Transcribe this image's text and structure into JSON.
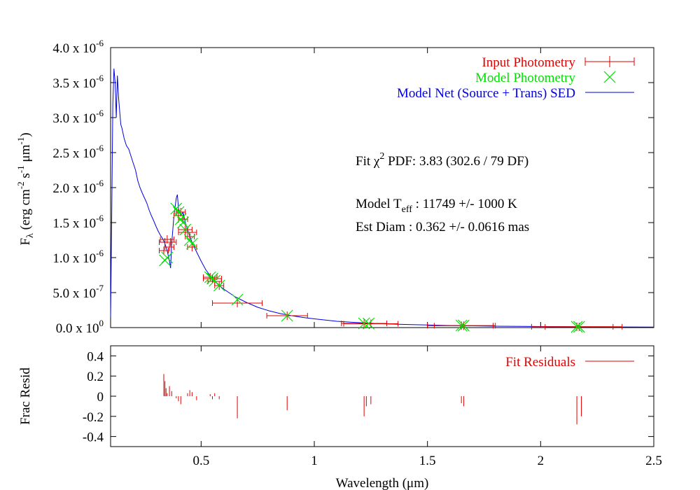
{
  "colors": {
    "input": "#e00000",
    "model_phot": "#00e000",
    "sed": "#0000e0",
    "axes": "#000000"
  },
  "chart_data": [
    {
      "id": "sed_panel",
      "type": "line",
      "xlim": [
        0.1,
        2.5
      ],
      "ylim": [
        0,
        4e-06
      ],
      "ylabel": "F_λ (erg cm^-2 s^-1 μm^-1)",
      "ylabel_parts": {
        "f": "F",
        "lambda": "λ",
        "open": "(erg cm",
        "e1": "-2",
        "s": " s",
        "e2": "-1",
        "um": " μm",
        "e3": "-1",
        "close": ")"
      },
      "yticks": [
        {
          "v": 0.0,
          "mant": "0.0 x 10",
          "exp": "0"
        },
        {
          "v": 5e-07,
          "mant": "5.0 x 10",
          "exp": "-7"
        },
        {
          "v": 1e-06,
          "mant": "1.0 x 10",
          "exp": "-6"
        },
        {
          "v": 1.5e-06,
          "mant": "1.5 x 10",
          "exp": "-6"
        },
        {
          "v": 2e-06,
          "mant": "2.0 x 10",
          "exp": "-6"
        },
        {
          "v": 2.5e-06,
          "mant": "2.5 x 10",
          "exp": "-6"
        },
        {
          "v": 3e-06,
          "mant": "3.0 x 10",
          "exp": "-6"
        },
        {
          "v": 3.5e-06,
          "mant": "3.5 x 10",
          "exp": "-6"
        },
        {
          "v": 4e-06,
          "mant": "4.0 x 10",
          "exp": "-6"
        }
      ],
      "xticks_values": [
        0.5,
        1.0,
        1.5,
        2.0,
        2.5
      ],
      "legend": {
        "placement": "top-right",
        "entries": [
          {
            "key": "input",
            "label": "Input Photometry",
            "style": "errorbar"
          },
          {
            "key": "model_phot",
            "label": "Model Photometry",
            "style": "cross"
          },
          {
            "key": "sed",
            "label": "Model Net (Source + Trans) SED",
            "style": "line"
          }
        ]
      },
      "annotations": {
        "chi_fit": "Fit ",
        "chi_sym": "χ",
        "chi_exp": "2",
        "chi_rest": " PDF: 3.83 (302.6 / 79 DF)",
        "teff_pre": "Model T",
        "teff_sub": "eff",
        "teff_rest": " : 11749 +/- 1000 K",
        "diam": "Est Diam : 0.362 +/- 0.0616 mas"
      },
      "sed_curve": [
        [
          0.1,
          1.5e-07
        ],
        [
          0.105,
          1.6e-06
        ],
        [
          0.11,
          3.2e-06
        ],
        [
          0.115,
          3.7e-06
        ],
        [
          0.12,
          3.5e-06
        ],
        [
          0.125,
          3e-06
        ],
        [
          0.13,
          3.6e-06
        ],
        [
          0.135,
          3.3e-06
        ],
        [
          0.14,
          3.1e-06
        ],
        [
          0.145,
          2.9e-06
        ],
        [
          0.15,
          2.85e-06
        ],
        [
          0.16,
          2.7e-06
        ],
        [
          0.17,
          2.6e-06
        ],
        [
          0.18,
          2.55e-06
        ],
        [
          0.19,
          2.45e-06
        ],
        [
          0.2,
          2.35e-06
        ],
        [
          0.21,
          2.25e-06
        ],
        [
          0.22,
          2.1e-06
        ],
        [
          0.23,
          2e-06
        ],
        [
          0.24,
          1.92e-06
        ],
        [
          0.25,
          1.85e-06
        ],
        [
          0.26,
          1.78e-06
        ],
        [
          0.27,
          1.68e-06
        ],
        [
          0.28,
          1.6e-06
        ],
        [
          0.29,
          1.53e-06
        ],
        [
          0.3,
          1.45e-06
        ],
        [
          0.31,
          1.38e-06
        ],
        [
          0.32,
          1.32e-06
        ],
        [
          0.33,
          1.27e-06
        ],
        [
          0.34,
          1.2e-06
        ],
        [
          0.35,
          1.1e-06
        ],
        [
          0.36,
          9.5e-07
        ],
        [
          0.365,
          8.5e-07
        ],
        [
          0.37,
          1.2e-06
        ],
        [
          0.38,
          1.6e-06
        ],
        [
          0.39,
          1.85e-06
        ],
        [
          0.395,
          1.9e-06
        ],
        [
          0.4,
          1.7e-06
        ],
        [
          0.41,
          1.6e-06
        ],
        [
          0.42,
          1.65e-06
        ],
        [
          0.43,
          1.5e-06
        ],
        [
          0.44,
          1.4e-06
        ],
        [
          0.45,
          1.3e-06
        ],
        [
          0.46,
          1.22e-06
        ],
        [
          0.47,
          1.15e-06
        ],
        [
          0.48,
          1.08e-06
        ],
        [
          0.5,
          9.5e-07
        ],
        [
          0.52,
          8.3e-07
        ],
        [
          0.54,
          7.4e-07
        ],
        [
          0.56,
          6.6e-07
        ],
        [
          0.58,
          6e-07
        ],
        [
          0.6,
          5.5e-07
        ],
        [
          0.65,
          4.4e-07
        ],
        [
          0.7,
          3.6e-07
        ],
        [
          0.75,
          2.9e-07
        ],
        [
          0.8,
          2.4e-07
        ],
        [
          0.85,
          2e-07
        ],
        [
          0.9,
          1.7e-07
        ],
        [
          0.95,
          1.45e-07
        ],
        [
          1.0,
          1.25e-07
        ],
        [
          1.1,
          9e-08
        ],
        [
          1.2,
          7e-08
        ],
        [
          1.3,
          5.5e-08
        ],
        [
          1.4,
          4.5e-08
        ],
        [
          1.5,
          3.7e-08
        ],
        [
          1.6,
          3e-08
        ],
        [
          1.8,
          2e-08
        ],
        [
          2.0,
          1.5e-08
        ],
        [
          2.2,
          1.1e-08
        ],
        [
          2.5,
          7e-09
        ]
      ],
      "input_photometry": [
        {
          "x": 0.335,
          "y": 1.1e-06,
          "xerr": 0.02,
          "yerr": 5e-08
        },
        {
          "x": 0.34,
          "y": 1.22e-06,
          "xerr": 0.025,
          "yerr": 5e-08
        },
        {
          "x": 0.35,
          "y": 1.26e-06,
          "xerr": 0.03,
          "yerr": 5e-08
        },
        {
          "x": 0.36,
          "y": 1.15e-06,
          "xerr": 0.02,
          "yerr": 5e-08
        },
        {
          "x": 0.365,
          "y": 1.22e-06,
          "xerr": 0.025,
          "yerr": 5e-08
        },
        {
          "x": 0.4,
          "y": 1.6e-06,
          "xerr": 0.02,
          "yerr": 1e-07
        },
        {
          "x": 0.41,
          "y": 1.65e-06,
          "xerr": 0.02,
          "yerr": 5e-08
        },
        {
          "x": 0.42,
          "y": 1.55e-06,
          "xerr": 0.02,
          "yerr": 5e-08
        },
        {
          "x": 0.43,
          "y": 1.4e-06,
          "xerr": 0.03,
          "yerr": 5e-08
        },
        {
          "x": 0.44,
          "y": 1.36e-06,
          "xerr": 0.04,
          "yerr": 5e-08
        },
        {
          "x": 0.45,
          "y": 1.3e-06,
          "xerr": 0.02,
          "yerr": 5e-08
        },
        {
          "x": 0.46,
          "y": 1.15e-06,
          "xerr": 0.02,
          "yerr": 5e-08
        },
        {
          "x": 0.54,
          "y": 7.2e-07,
          "xerr": 0.03,
          "yerr": 4e-08
        },
        {
          "x": 0.55,
          "y": 7e-07,
          "xerr": 0.04,
          "yerr": 4e-08
        },
        {
          "x": 0.56,
          "y": 6.6e-07,
          "xerr": 0.03,
          "yerr": 4e-08
        },
        {
          "x": 0.58,
          "y": 6e-07,
          "xerr": 0.02,
          "yerr": 3e-08
        },
        {
          "x": 0.66,
          "y": 3.5e-07,
          "xerr": 0.11,
          "yerr": 3e-08
        },
        {
          "x": 0.88,
          "y": 1.7e-07,
          "xerr": 0.09,
          "yerr": 2e-08
        },
        {
          "x": 1.22,
          "y": 6e-08,
          "xerr": 0.1,
          "yerr": 1e-08
        },
        {
          "x": 1.25,
          "y": 5.5e-08,
          "xerr": 0.12,
          "yerr": 1e-08
        },
        {
          "x": 1.65,
          "y": 2.8e-08,
          "xerr": 0.15,
          "yerr": 5e-09
        },
        {
          "x": 1.66,
          "y": 2.7e-08,
          "xerr": 0.13,
          "yerr": 5e-09
        },
        {
          "x": 2.16,
          "y": 1.2e-08,
          "xerr": 0.2,
          "yerr": 3e-09
        },
        {
          "x": 2.17,
          "y": 1.1e-08,
          "xerr": 0.15,
          "yerr": 3e-09
        }
      ],
      "model_photometry": [
        [
          0.34,
          9.6e-07
        ],
        [
          0.35,
          1e-06
        ],
        [
          0.39,
          1.7e-06
        ],
        [
          0.4,
          1.65e-06
        ],
        [
          0.41,
          1.55e-06
        ],
        [
          0.42,
          1.5e-06
        ],
        [
          0.43,
          1.4e-06
        ],
        [
          0.45,
          1.25e-06
        ],
        [
          0.46,
          1.2e-06
        ],
        [
          0.54,
          7.2e-07
        ],
        [
          0.55,
          7e-07
        ],
        [
          0.56,
          6.7e-07
        ],
        [
          0.58,
          6e-07
        ],
        [
          0.66,
          4e-07
        ],
        [
          0.88,
          1.7e-07
        ],
        [
          1.22,
          6e-08
        ],
        [
          1.24,
          5.8e-08
        ],
        [
          1.65,
          3e-08
        ],
        [
          1.66,
          2.9e-08
        ],
        [
          2.16,
          1.2e-08
        ],
        [
          2.17,
          1.2e-08
        ]
      ]
    },
    {
      "id": "residual_panel",
      "type": "bar",
      "xlim": [
        0.1,
        2.5
      ],
      "ylim": [
        -0.5,
        0.5
      ],
      "ylabel": "Frac Resid",
      "xlabel": "Wavelength (μm)",
      "xlabel_parts": {
        "pre": "Wavelength (",
        "um": "μm",
        "post": ")"
      },
      "yticks": [
        "0.4",
        "0.2",
        "0",
        "-0.2",
        "-0.4"
      ],
      "xticks": [
        "0.5",
        "1",
        "1.5",
        "2",
        "2.5"
      ],
      "legend": {
        "placement": "top-right",
        "label": "Fit Residuals"
      },
      "residuals": [
        [
          0.335,
          0.22
        ],
        [
          0.34,
          0.15
        ],
        [
          0.345,
          0.08
        ],
        [
          0.35,
          0.03
        ],
        [
          0.36,
          0.1
        ],
        [
          0.37,
          0.05
        ],
        [
          0.39,
          -0.02
        ],
        [
          0.4,
          -0.05
        ],
        [
          0.41,
          -0.08
        ],
        [
          0.44,
          0.03
        ],
        [
          0.45,
          0.06
        ],
        [
          0.46,
          0.04
        ],
        [
          0.48,
          -0.04
        ],
        [
          0.54,
          0.02
        ],
        [
          0.55,
          -0.03
        ],
        [
          0.56,
          0.03
        ],
        [
          0.58,
          -0.03
        ],
        [
          0.66,
          -0.22
        ],
        [
          0.88,
          -0.14
        ],
        [
          1.22,
          -0.2
        ],
        [
          1.23,
          -0.1
        ],
        [
          1.25,
          -0.08
        ],
        [
          1.65,
          -0.07
        ],
        [
          1.66,
          -0.1
        ],
        [
          2.16,
          -0.28
        ],
        [
          2.18,
          -0.2
        ]
      ]
    }
  ]
}
